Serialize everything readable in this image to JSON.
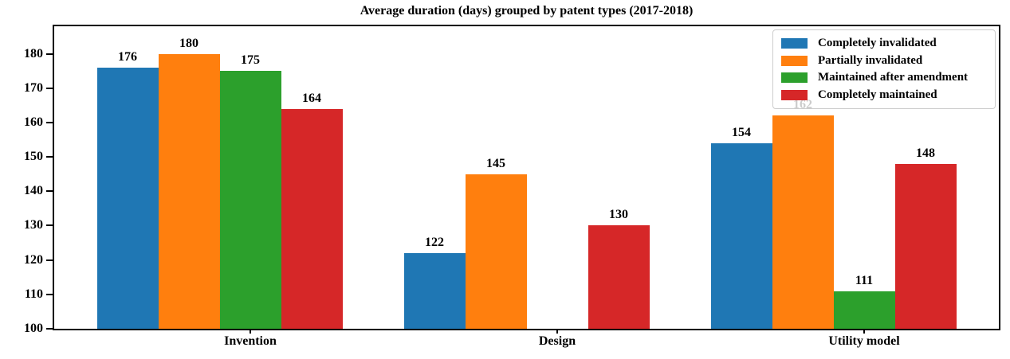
{
  "chart_data": {
    "type": "bar",
    "title": "Average duration (days) grouped by patent types (2017-2018)",
    "categories": [
      "Invention",
      "Design",
      "Utility model"
    ],
    "series": [
      {
        "name": "Completely invalidated",
        "color": "#1f77b4",
        "values": [
          176,
          122,
          154
        ]
      },
      {
        "name": "Partially invalidated",
        "color": "#ff7f0e",
        "values": [
          180,
          145,
          162
        ]
      },
      {
        "name": "Maintained after amendment",
        "color": "#2ca02c",
        "values": [
          175,
          null,
          111
        ]
      },
      {
        "name": "Completely maintained",
        "color": "#d62728",
        "values": [
          164,
          130,
          148
        ]
      }
    ],
    "ylim": [
      100,
      188
    ],
    "yticks": [
      100,
      110,
      120,
      130,
      140,
      150,
      160,
      170,
      180
    ],
    "value_labels_shown": true,
    "legend_position": "upper right",
    "grid": "off"
  }
}
